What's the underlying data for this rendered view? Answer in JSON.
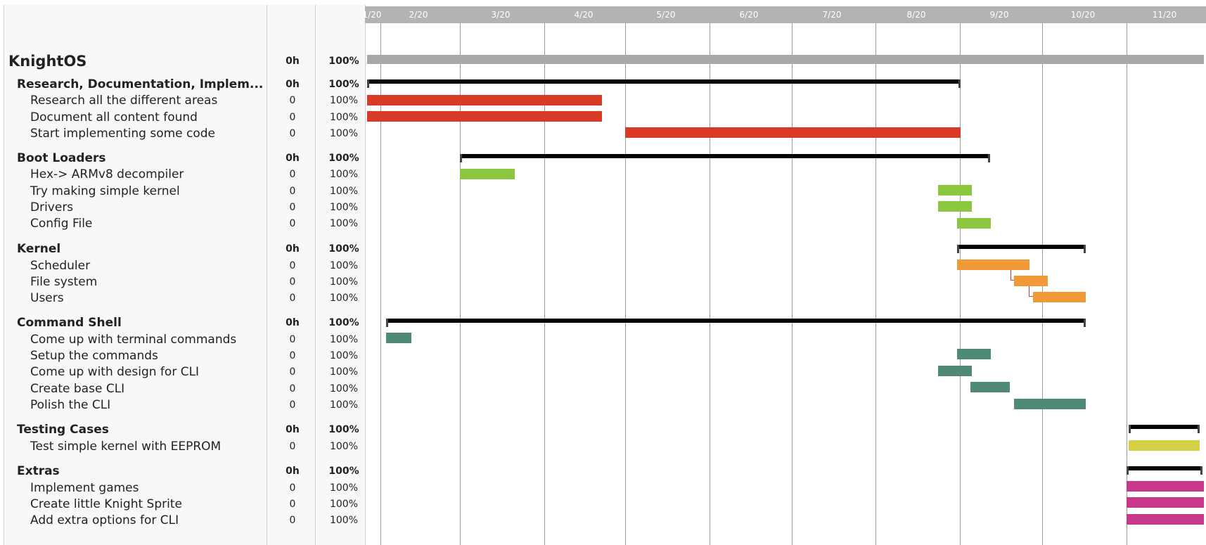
{
  "columns": {
    "name": "",
    "hours": "",
    "percent": ""
  },
  "timeline": {
    "months": [
      "1/20",
      "2/20",
      "3/20",
      "4/20",
      "5/20",
      "6/20",
      "7/20",
      "8/20",
      "9/20",
      "10/20",
      "11/20"
    ]
  },
  "colors": {
    "project_bar": "#a8a8a8",
    "summary_bar": "#000000",
    "research": "#d93a26",
    "boot_loaders": "#8dc63f",
    "kernel": "#f29a38",
    "command_shell": "#4f8a74",
    "testing": "#d4cf45",
    "extras": "#c8388a",
    "dependency_link": "#e03030"
  },
  "project": {
    "name": "KnightOS",
    "hours": "0h",
    "percent": "100%"
  },
  "groups": [
    {
      "name": "Research, Documentation, Implem...",
      "hours": "0h",
      "percent": "100%",
      "tasks": [
        {
          "name": "Research all the different areas",
          "hours": "0",
          "percent": "100%"
        },
        {
          "name": "Document all content found",
          "hours": "0",
          "percent": "100%"
        },
        {
          "name": "Start implementing some code",
          "hours": "0",
          "percent": "100%"
        }
      ]
    },
    {
      "name": "Boot Loaders",
      "hours": "0h",
      "percent": "100%",
      "tasks": [
        {
          "name": "Hex-> ARMv8 decompiler",
          "hours": "0",
          "percent": "100%"
        },
        {
          "name": "Try making simple kernel",
          "hours": "0",
          "percent": "100%"
        },
        {
          "name": "Drivers",
          "hours": "0",
          "percent": "100%"
        },
        {
          "name": "Config File",
          "hours": "0",
          "percent": "100%"
        }
      ]
    },
    {
      "name": "Kernel",
      "hours": "0h",
      "percent": "100%",
      "tasks": [
        {
          "name": "Scheduler",
          "hours": "0",
          "percent": "100%"
        },
        {
          "name": "File system",
          "hours": "0",
          "percent": "100%"
        },
        {
          "name": "Users",
          "hours": "0",
          "percent": "100%"
        }
      ]
    },
    {
      "name": "Command Shell",
      "hours": "0h",
      "percent": "100%",
      "tasks": [
        {
          "name": "Come up with terminal commands",
          "hours": "0",
          "percent": "100%"
        },
        {
          "name": "Setup the commands",
          "hours": "0",
          "percent": "100%"
        },
        {
          "name": "Come up with design for CLI",
          "hours": "0",
          "percent": "100%"
        },
        {
          "name": "Create base CLI",
          "hours": "0",
          "percent": "100%"
        },
        {
          "name": "Polish the CLI",
          "hours": "0",
          "percent": "100%"
        }
      ]
    },
    {
      "name": "Testing Cases",
      "hours": "0h",
      "percent": "100%",
      "tasks": [
        {
          "name": "Test simple kernel with EEPROM",
          "hours": "0",
          "percent": "100%"
        }
      ]
    },
    {
      "name": "Extras",
      "hours": "0h",
      "percent": "100%",
      "tasks": [
        {
          "name": "Implement games",
          "hours": "0",
          "percent": "100%"
        },
        {
          "name": "Create little Knight Sprite",
          "hours": "0",
          "percent": "100%"
        },
        {
          "name": "Add extra options for CLI",
          "hours": "0",
          "percent": "100%"
        }
      ]
    }
  ]
}
